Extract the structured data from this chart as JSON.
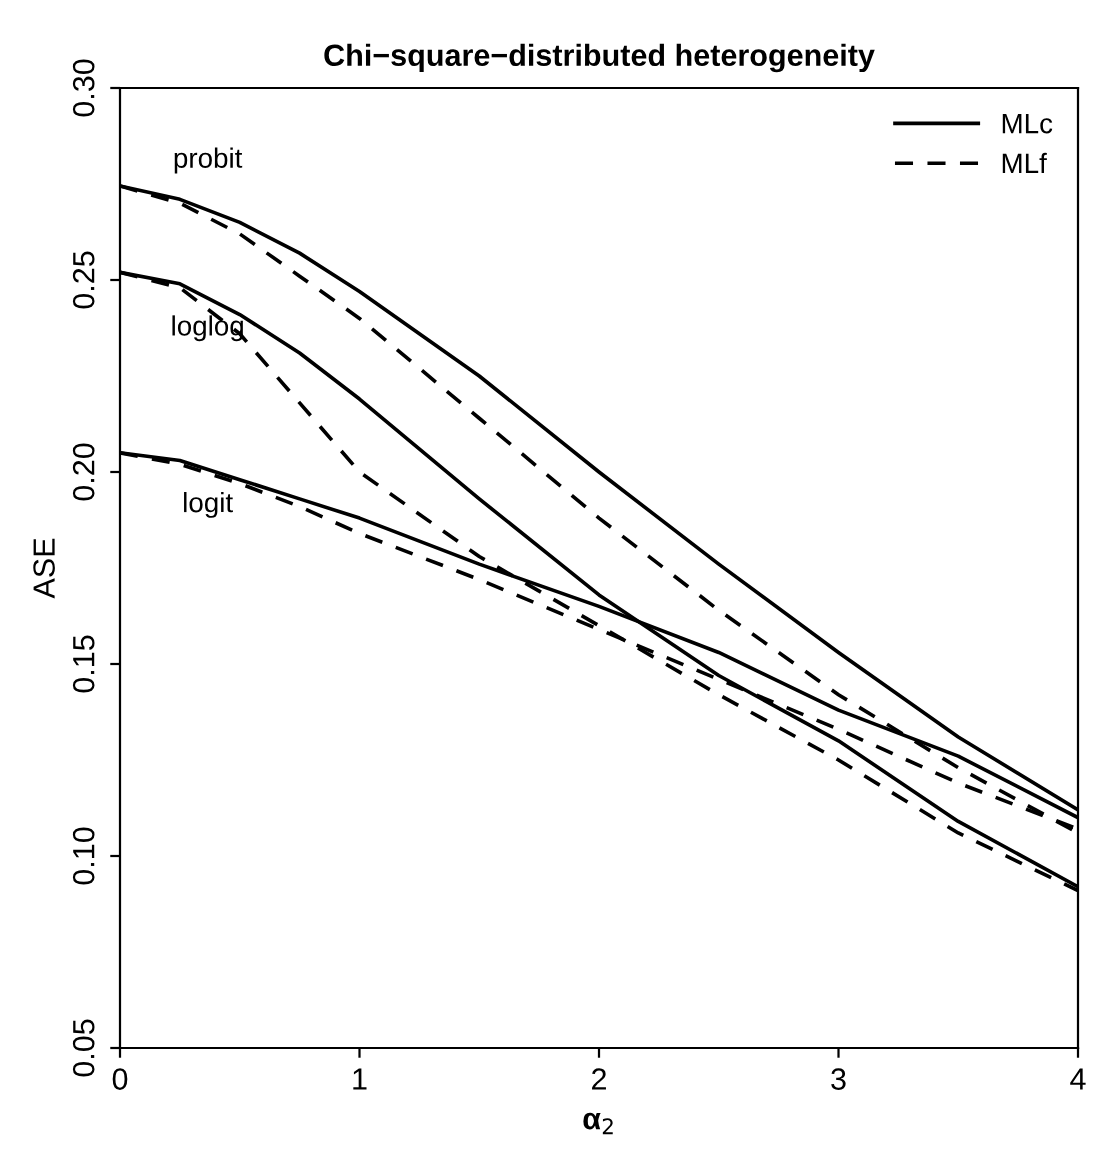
{
  "chart_data": {
    "type": "line",
    "title": "Chi−square−distributed heterogeneity",
    "xlabel": "α$_{2}$",
    "ylabel": "ASE",
    "x": [
      0,
      0.25,
      0.5,
      0.75,
      1,
      1.5,
      2,
      2.5,
      3,
      3.5,
      4
    ],
    "series": [
      {
        "name": "MLc",
        "color": "#000000",
        "line_style": "solid",
        "values": [
          0.2745,
          0.271,
          0.265,
          0.257,
          0.247,
          0.225,
          0.2,
          0.176,
          0.153,
          0.131,
          0.112
        ]
      },
      {
        "name": "MLf",
        "color": "#000000",
        "line_style": "dashed",
        "values": [
          0.2745,
          0.27,
          0.262,
          0.251,
          0.24,
          0.214,
          0.188,
          0.164,
          0.142,
          0.123,
          0.106
        ]
      },
      {
        "color": "#000000",
        "line_style": "solid",
        "values": [
          0.252,
          0.249,
          0.241,
          0.231,
          0.219,
          0.193,
          0.168,
          0.147,
          0.13,
          0.109,
          0.092
        ]
      },
      {
        "color": "#000000",
        "line_style": "dashed",
        "values": [
          0.252,
          0.248,
          0.236,
          0.218,
          0.2,
          0.178,
          0.16,
          0.142,
          0.125,
          0.106,
          0.091
        ]
      },
      {
        "color": "#000000",
        "line_style": "solid",
        "values": [
          0.205,
          0.203,
          0.198,
          0.193,
          0.188,
          0.176,
          0.165,
          0.153,
          0.138,
          0.126,
          0.11
        ]
      },
      {
        "color": "#000000",
        "line_style": "dashed",
        "values": [
          0.205,
          0.202,
          0.197,
          0.191,
          0.184,
          0.172,
          0.159,
          0.146,
          0.133,
          0.119,
          0.107
        ]
      }
    ],
    "annotations": [
      "probit",
      "loglog",
      "logit"
    ],
    "xlim": [
      0,
      4
    ],
    "xticks": [
      0,
      1,
      2,
      3,
      4
    ],
    "ylim": [
      0.05,
      0.3
    ],
    "yticks": [
      {
        "value": 0.05,
        "label": "0.05"
      },
      {
        "value": 0.1,
        "label": "0.10"
      },
      {
        "value": 0.15,
        "label": "0.15"
      },
      {
        "value": 0.2,
        "label": "0.20"
      },
      {
        "value": 0.25,
        "label": "0.25"
      },
      {
        "value": 0.3,
        "label": "0.30"
      }
    ],
    "grid": false,
    "legend": "top right",
    "marker": "none"
  }
}
